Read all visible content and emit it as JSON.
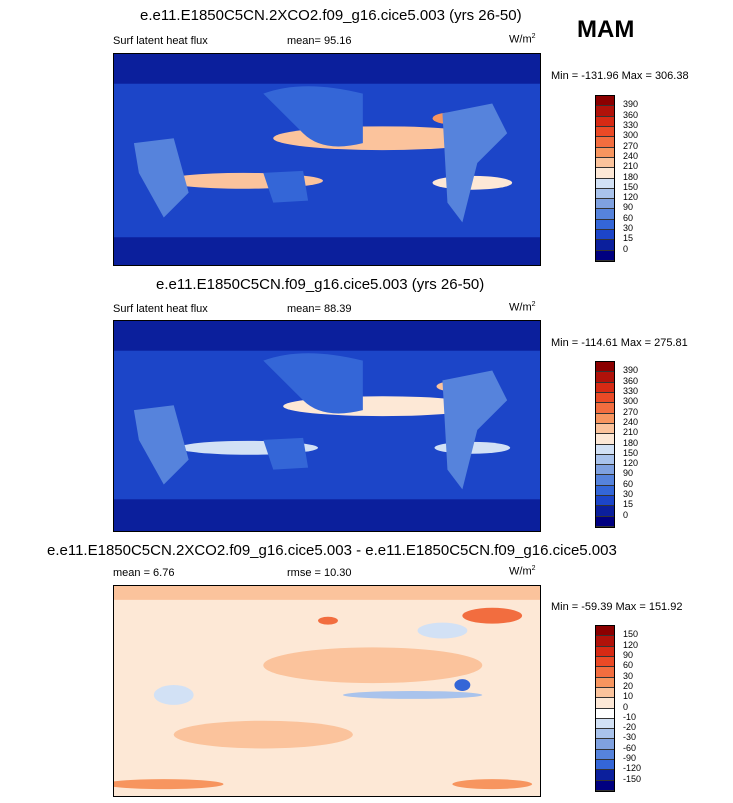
{
  "season": "MAM",
  "panels": [
    {
      "title": "e.e11.E1850C5CN.2XCO2.f09_g16.cice5.003 (yrs 26-50)",
      "left_label": "Surf latent heat flux",
      "center_label": "mean=  95.16",
      "units": "W/m",
      "units_sup": "2",
      "minmax": "Min = -131.96 Max = 306.38",
      "levels": [
        "390",
        "360",
        "330",
        "300",
        "270",
        "240",
        "210",
        "180",
        "150",
        "120",
        "90",
        "60",
        "30",
        "15",
        "0"
      ],
      "colors": [
        "#8b0000",
        "#b0120a",
        "#d62a14",
        "#ea4a26",
        "#f26d3f",
        "#f7955f",
        "#fbc39c",
        "#fde8d6",
        "#d2e1f5",
        "#a9c3ec",
        "#7fa1e0",
        "#5683dc",
        "#3466d7",
        "#1c45c8",
        "#0b1f9c",
        "#000080"
      ],
      "style": "heat1"
    },
    {
      "title": "e.e11.E1850C5CN.f09_g16.cice5.003 (yrs 26-50)",
      "left_label": "Surf latent heat flux",
      "center_label": "mean=  88.39",
      "units": "W/m",
      "units_sup": "2",
      "minmax": "Min = -114.61 Max = 275.81",
      "levels": [
        "390",
        "360",
        "330",
        "300",
        "270",
        "240",
        "210",
        "180",
        "150",
        "120",
        "90",
        "60",
        "30",
        "15",
        "0"
      ],
      "colors": [
        "#8b0000",
        "#b0120a",
        "#d62a14",
        "#ea4a26",
        "#f26d3f",
        "#f7955f",
        "#fbc39c",
        "#fde8d6",
        "#d2e1f5",
        "#a9c3ec",
        "#7fa1e0",
        "#5683dc",
        "#3466d7",
        "#1c45c8",
        "#0b1f9c",
        "#000080"
      ],
      "style": "heat2"
    },
    {
      "title": "e.e11.E1850C5CN.2XCO2.f09_g16.cice5.003 - e.e11.E1850C5CN.f09_g16.cice5.003",
      "left_label": "mean =  6.76",
      "center_label": "rmse =  10.30",
      "units": "W/m",
      "units_sup": "2",
      "minmax": "Min = -59.39 Max = 151.92",
      "levels": [
        "150",
        "120",
        "90",
        "60",
        "30",
        "20",
        "10",
        "0",
        "-10",
        "-20",
        "-30",
        "-60",
        "-90",
        "-120",
        "-150"
      ],
      "colors": [
        "#8b0000",
        "#b0120a",
        "#d62a14",
        "#ea4a26",
        "#f26d3f",
        "#f7955f",
        "#fbc39c",
        "#fde8d6",
        "#ffffff",
        "#d2e1f5",
        "#a9c3ec",
        "#7fa1e0",
        "#5683dc",
        "#3466d7",
        "#0b1f9c",
        "#000080"
      ],
      "style": "diff"
    }
  ]
}
